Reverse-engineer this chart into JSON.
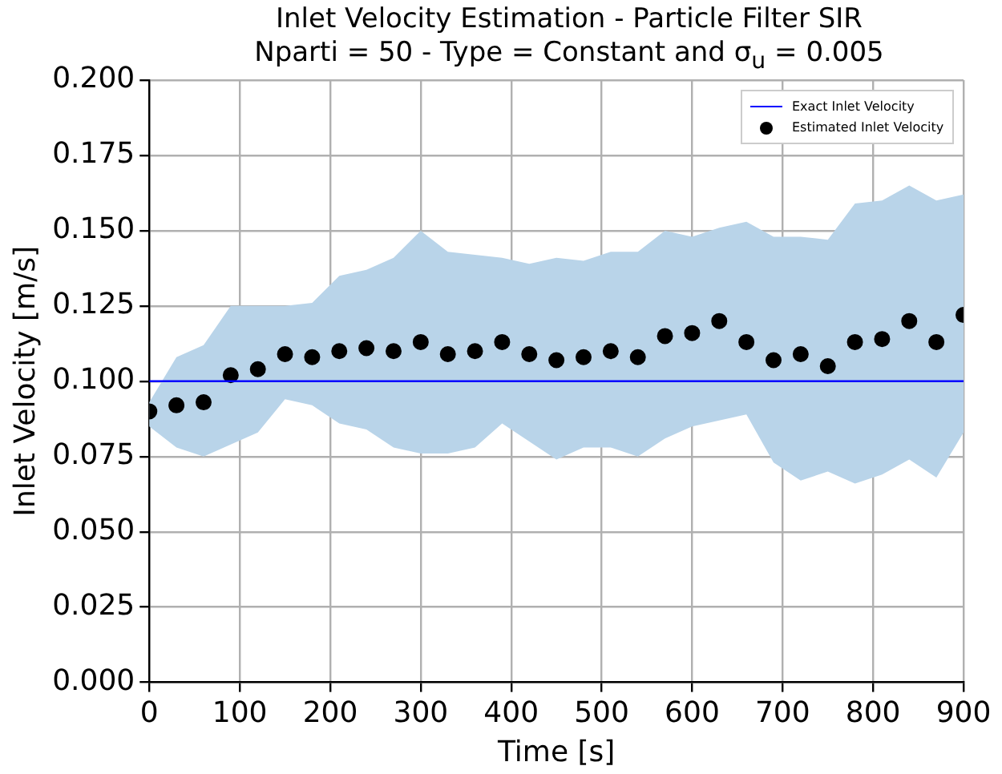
{
  "chart_data": {
    "type": "scatter",
    "title": "Inlet Velocity Estimation - Particle Filter SIR",
    "subtitle": "Nparti = 50 - Type = Constant and σ$_{u}$ = 0.005",
    "xlabel": "Time [s]",
    "ylabel": "Inlet Velocity [m/s]",
    "x": [
      0,
      30,
      60,
      90,
      120,
      150,
      180,
      210,
      240,
      270,
      300,
      330,
      360,
      390,
      420,
      450,
      480,
      510,
      540,
      570,
      600,
      630,
      660,
      690,
      720,
      750,
      780,
      810,
      840,
      870,
      900
    ],
    "series": [
      {
        "name": "Exact Inlet Velocity",
        "type": "line",
        "color": "#0000ff",
        "x": [
          0,
          900
        ],
        "values": [
          0.1,
          0.1
        ],
        "marker": "none"
      },
      {
        "name": "Estimated Inlet Velocity",
        "color": "#000000",
        "marker": "circle",
        "values": [
          0.09,
          0.092,
          0.093,
          0.102,
          0.104,
          0.109,
          0.108,
          0.11,
          0.111,
          0.11,
          0.113,
          0.109,
          0.11,
          0.113,
          0.109,
          0.107,
          0.108,
          0.11,
          0.108,
          0.115,
          0.116,
          0.12,
          0.113,
          0.107,
          0.109,
          0.105,
          0.113,
          0.114,
          0.12,
          0.113,
          0.122
        ],
        "lower": [
          0.085,
          0.078,
          0.075,
          0.079,
          0.083,
          0.094,
          0.092,
          0.086,
          0.084,
          0.078,
          0.076,
          0.076,
          0.078,
          0.086,
          0.08,
          0.074,
          0.078,
          0.078,
          0.075,
          0.081,
          0.085,
          0.087,
          0.089,
          0.073,
          0.067,
          0.07,
          0.066,
          0.069,
          0.074,
          0.068,
          0.083
        ],
        "upper": [
          0.093,
          0.108,
          0.112,
          0.125,
          0.125,
          0.125,
          0.126,
          0.135,
          0.137,
          0.141,
          0.15,
          0.143,
          0.142,
          0.141,
          0.139,
          0.141,
          0.14,
          0.143,
          0.143,
          0.15,
          0.148,
          0.151,
          0.153,
          0.148,
          0.148,
          0.147,
          0.159,
          0.16,
          0.165,
          0.16,
          0.162
        ]
      }
    ],
    "xlim": [
      0,
      900
    ],
    "xticks": [
      0,
      100,
      200,
      300,
      400,
      500,
      600,
      700,
      800,
      900
    ],
    "ylim": [
      0,
      0.2
    ],
    "yticks": [
      {
        "value": 0,
        "label": "0.000"
      },
      {
        "value": 0.025,
        "label": "0.025"
      },
      {
        "value": 0.05,
        "label": "0.050"
      },
      {
        "value": 0.075,
        "label": "0.075"
      },
      {
        "value": 0.1,
        "label": "0.100"
      },
      {
        "value": 0.125,
        "label": "0.125"
      },
      {
        "value": 0.15,
        "label": "0.150"
      },
      {
        "value": 0.175,
        "label": "0.175"
      },
      {
        "value": 0.2,
        "label": "0.200"
      }
    ],
    "grid": true,
    "legend": "top right"
  }
}
